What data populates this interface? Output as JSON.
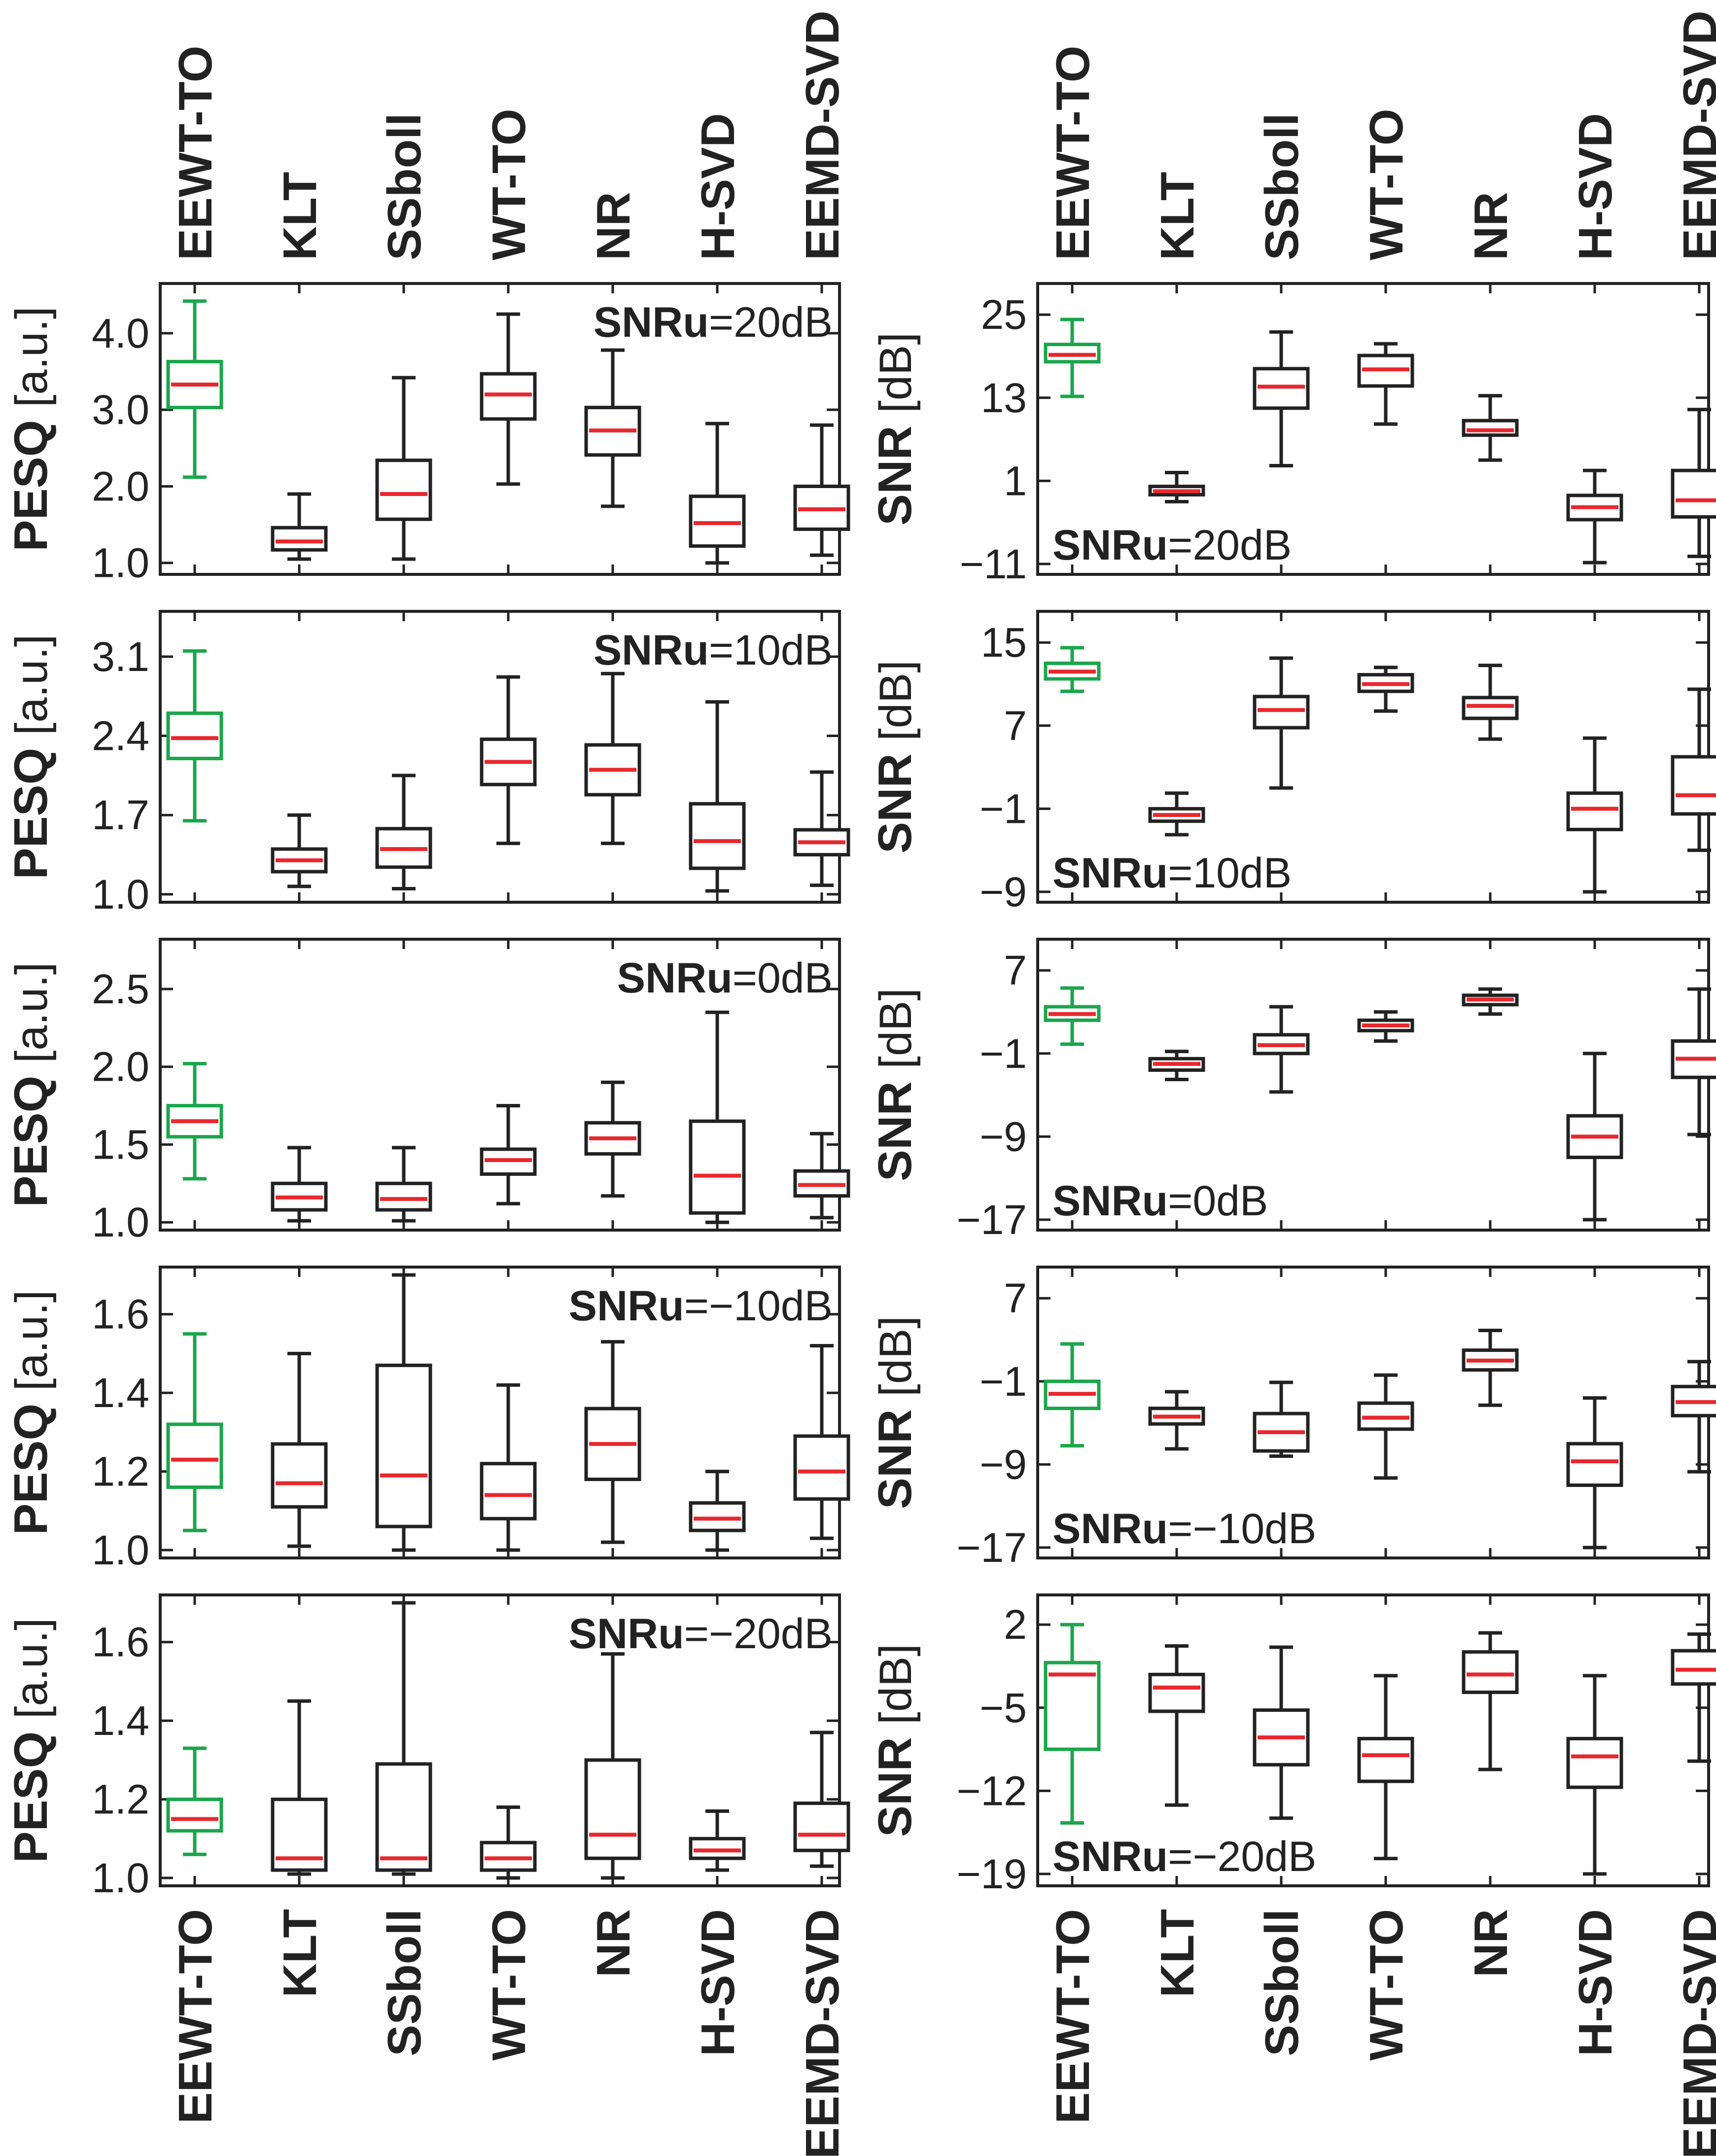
{
  "figure": {
    "methods": [
      "EEWT-TO",
      "KLT",
      "SSboll",
      "WT-TO",
      "NR",
      "H-SVD",
      "EEMD-SVD"
    ],
    "highlight_method": "EEWT-TO",
    "colors": {
      "highlight": "#1aa64b",
      "box": "#222222",
      "median": "#e8282e",
      "text": "#222222"
    },
    "column_titles": {
      "pesq": {
        "bold": "PESQ",
        "unit": " [a.u.]"
      },
      "snr": {
        "bold": "SNR",
        "unit": " [dB]"
      }
    }
  },
  "chart_data": [
    {
      "type": "box",
      "metric": "PESQ",
      "ylabel": "PESQ [a.u.]",
      "annotation": {
        "bold": "SNRu",
        "value": "=20dB",
        "position": "top-right"
      },
      "ylim": [
        0.85,
        4.65
      ],
      "yticks": [
        1.0,
        2.0,
        3.0,
        4.0
      ],
      "tick_labels": [
        "1.0",
        "2.0",
        "3.0",
        "4.0"
      ],
      "boxes": [
        {
          "method": "EEWT-TO",
          "min": 2.12,
          "q1": 3.03,
          "median": 3.33,
          "q3": 3.63,
          "max": 4.42
        },
        {
          "method": "KLT",
          "min": 1.05,
          "q1": 1.17,
          "median": 1.28,
          "q3": 1.46,
          "max": 1.9
        },
        {
          "method": "SSboll",
          "min": 1.05,
          "q1": 1.57,
          "median": 1.9,
          "q3": 2.34,
          "max": 3.42
        },
        {
          "method": "WT-TO",
          "min": 2.03,
          "q1": 2.88,
          "median": 3.2,
          "q3": 3.47,
          "max": 4.25
        },
        {
          "method": "NR",
          "min": 1.74,
          "q1": 2.41,
          "median": 2.73,
          "q3": 3.03,
          "max": 3.78
        },
        {
          "method": "H-SVD",
          "min": 1.0,
          "q1": 1.22,
          "median": 1.52,
          "q3": 1.87,
          "max": 2.82
        },
        {
          "method": "EEMD-SVD",
          "min": 1.1,
          "q1": 1.44,
          "median": 1.7,
          "q3": 2.0,
          "max": 2.8
        }
      ]
    },
    {
      "type": "box",
      "metric": "SNR",
      "ylabel": "SNR [dB]",
      "annotation": {
        "bold": "SNRu",
        "value": "=20dB",
        "position": "bottom-left"
      },
      "ylim": [
        -12.5,
        29.5
      ],
      "yticks": [
        -11,
        1,
        13,
        25
      ],
      "tick_labels": [
        "−11",
        "1",
        "13",
        "25"
      ],
      "boxes": [
        {
          "method": "EEWT-TO",
          "min": 13.2,
          "q1": 18.2,
          "median": 19.2,
          "q3": 20.7,
          "max": 24.3
        },
        {
          "method": "KLT",
          "min": -2.0,
          "q1": -1.0,
          "median": -0.5,
          "q3": 0.2,
          "max": 2.2
        },
        {
          "method": "SSboll",
          "min": 3.2,
          "q1": 11.5,
          "median": 14.6,
          "q3": 17.2,
          "max": 22.5
        },
        {
          "method": "WT-TO",
          "min": 9.2,
          "q1": 14.7,
          "median": 17.1,
          "q3": 19.1,
          "max": 20.8
        },
        {
          "method": "NR",
          "min": 4.0,
          "q1": 7.6,
          "median": 8.3,
          "q3": 9.7,
          "max": 13.3
        },
        {
          "method": "H-SVD",
          "min": -10.8,
          "q1": -4.6,
          "median": -2.8,
          "q3": -1.1,
          "max": 2.5
        },
        {
          "method": "EEMD-SVD",
          "min": -9.9,
          "q1": -4.2,
          "median": -1.8,
          "q3": 2.5,
          "max": 11.3
        }
      ]
    },
    {
      "type": "box",
      "metric": "PESQ",
      "ylabel": "PESQ [a.u.]",
      "annotation": {
        "bold": "SNRu",
        "value": "=10dB",
        "position": "top-right"
      },
      "ylim": [
        0.93,
        3.5
      ],
      "yticks": [
        1.0,
        1.7,
        2.4,
        3.1
      ],
      "tick_labels": [
        "1.0",
        "1.7",
        "2.4",
        "3.1"
      ],
      "boxes": [
        {
          "method": "EEWT-TO",
          "min": 1.65,
          "q1": 2.2,
          "median": 2.38,
          "q3": 2.6,
          "max": 3.15
        },
        {
          "method": "KLT",
          "min": 1.07,
          "q1": 1.2,
          "median": 1.3,
          "q3": 1.4,
          "max": 1.7
        },
        {
          "method": "SSboll",
          "min": 1.05,
          "q1": 1.24,
          "median": 1.4,
          "q3": 1.58,
          "max": 2.05
        },
        {
          "method": "WT-TO",
          "min": 1.45,
          "q1": 1.97,
          "median": 2.17,
          "q3": 2.37,
          "max": 2.92
        },
        {
          "method": "NR",
          "min": 1.45,
          "q1": 1.88,
          "median": 2.1,
          "q3": 2.32,
          "max": 2.95
        },
        {
          "method": "H-SVD",
          "min": 1.03,
          "q1": 1.23,
          "median": 1.47,
          "q3": 1.8,
          "max": 2.7
        },
        {
          "method": "EEMD-SVD",
          "min": 1.08,
          "q1": 1.35,
          "median": 1.46,
          "q3": 1.57,
          "max": 2.08
        }
      ]
    },
    {
      "type": "box",
      "metric": "SNR",
      "ylabel": "SNR [dB]",
      "annotation": {
        "bold": "SNRu",
        "value": "=10dB",
        "position": "bottom-left"
      },
      "ylim": [
        -10.0,
        18.0
      ],
      "yticks": [
        -9,
        -1,
        7,
        15
      ],
      "tick_labels": [
        "−9",
        "−1",
        "7",
        "15"
      ],
      "boxes": [
        {
          "method": "EEWT-TO",
          "min": 10.3,
          "q1": 11.5,
          "median": 12.2,
          "q3": 13.0,
          "max": 14.5
        },
        {
          "method": "KLT",
          "min": -3.5,
          "q1": -2.2,
          "median": -1.6,
          "q3": -1.0,
          "max": 0.5
        },
        {
          "method": "SSboll",
          "min": 1.0,
          "q1": 6.8,
          "median": 8.5,
          "q3": 9.8,
          "max": 13.5
        },
        {
          "method": "WT-TO",
          "min": 8.4,
          "q1": 10.3,
          "median": 11.0,
          "q3": 11.9,
          "max": 12.6
        },
        {
          "method": "NR",
          "min": 5.7,
          "q1": 7.7,
          "median": 8.9,
          "q3": 9.7,
          "max": 12.8
        },
        {
          "method": "H-SVD",
          "min": -9.0,
          "q1": -3.0,
          "median": -1.0,
          "q3": 0.5,
          "max": 5.8
        },
        {
          "method": "EEMD-SVD",
          "min": -5.0,
          "q1": -1.5,
          "median": 0.3,
          "q3": 4.0,
          "max": 10.5
        }
      ]
    },
    {
      "type": "box",
      "metric": "PESQ",
      "ylabel": "PESQ [a.u.]",
      "annotation": {
        "bold": "SNRu",
        "value": "=0dB",
        "position": "top-right"
      },
      "ylim": [
        0.95,
        2.82
      ],
      "yticks": [
        1.0,
        1.5,
        2.0,
        2.5
      ],
      "tick_labels": [
        "1.0",
        "1.5",
        "2.0",
        "2.5"
      ],
      "boxes": [
        {
          "method": "EEWT-TO",
          "min": 1.28,
          "q1": 1.55,
          "median": 1.65,
          "q3": 1.75,
          "max": 2.02
        },
        {
          "method": "KLT",
          "min": 1.01,
          "q1": 1.08,
          "median": 1.16,
          "q3": 1.25,
          "max": 1.48
        },
        {
          "method": "SSboll",
          "min": 1.01,
          "q1": 1.08,
          "median": 1.15,
          "q3": 1.25,
          "max": 1.48
        },
        {
          "method": "WT-TO",
          "min": 1.12,
          "q1": 1.31,
          "median": 1.4,
          "q3": 1.47,
          "max": 1.75
        },
        {
          "method": "NR",
          "min": 1.17,
          "q1": 1.44,
          "median": 1.54,
          "q3": 1.64,
          "max": 1.9
        },
        {
          "method": "H-SVD",
          "min": 1.0,
          "q1": 1.06,
          "median": 1.3,
          "q3": 1.65,
          "max": 2.35
        },
        {
          "method": "EEMD-SVD",
          "min": 1.03,
          "q1": 1.17,
          "median": 1.24,
          "q3": 1.33,
          "max": 1.57
        }
      ]
    },
    {
      "type": "box",
      "metric": "SNR",
      "ylabel": "SNR [dB]",
      "annotation": {
        "bold": "SNRu",
        "value": "=0dB",
        "position": "bottom-left"
      },
      "ylim": [
        -18.0,
        10.0
      ],
      "yticks": [
        -17,
        -9,
        -1,
        7
      ],
      "tick_labels": [
        "−17",
        "−9",
        "−1",
        "7"
      ],
      "boxes": [
        {
          "method": "EEWT-TO",
          "min": -0.1,
          "q1": 2.2,
          "median": 2.8,
          "q3": 3.5,
          "max": 5.3
        },
        {
          "method": "KLT",
          "min": -3.5,
          "q1": -2.6,
          "median": -2.0,
          "q3": -1.5,
          "max": -0.8
        },
        {
          "method": "SSboll",
          "min": -4.7,
          "q1": -1.0,
          "median": -0.2,
          "q3": 0.8,
          "max": 3.5
        },
        {
          "method": "WT-TO",
          "min": 0.2,
          "q1": 1.2,
          "median": 1.7,
          "q3": 2.2,
          "max": 3.0
        },
        {
          "method": "NR",
          "min": 2.8,
          "q1": 3.7,
          "median": 4.2,
          "q3": 4.6,
          "max": 5.2
        },
        {
          "method": "H-SVD",
          "min": -17.0,
          "q1": -11.0,
          "median": -9.0,
          "q3": -7.0,
          "max": -1.0
        },
        {
          "method": "EEMD-SVD",
          "min": -8.8,
          "q1": -3.3,
          "median": -1.5,
          "q3": 0.2,
          "max": 5.2
        }
      ]
    },
    {
      "type": "box",
      "metric": "PESQ",
      "ylabel": "PESQ [a.u.]",
      "annotation": {
        "bold": "SNRu",
        "value": "=−10dB",
        "position": "top-right"
      },
      "ylim": [
        0.98,
        1.72
      ],
      "yticks": [
        1.0,
        1.2,
        1.4,
        1.6
      ],
      "tick_labels": [
        "1.0",
        "1.2",
        "1.4",
        "1.6"
      ],
      "boxes": [
        {
          "method": "EEWT-TO",
          "min": 1.05,
          "q1": 1.16,
          "median": 1.23,
          "q3": 1.32,
          "max": 1.55
        },
        {
          "method": "KLT",
          "min": 1.01,
          "q1": 1.11,
          "median": 1.17,
          "q3": 1.27,
          "max": 1.5
        },
        {
          "method": "SSboll",
          "min": 1.0,
          "q1": 1.06,
          "median": 1.19,
          "q3": 1.47,
          "max": 1.7
        },
        {
          "method": "WT-TO",
          "min": 1.0,
          "q1": 1.08,
          "median": 1.14,
          "q3": 1.22,
          "max": 1.42
        },
        {
          "method": "NR",
          "min": 1.02,
          "q1": 1.18,
          "median": 1.27,
          "q3": 1.36,
          "max": 1.53
        },
        {
          "method": "H-SVD",
          "min": 1.0,
          "q1": 1.05,
          "median": 1.08,
          "q3": 1.12,
          "max": 1.2
        },
        {
          "method": "EEMD-SVD",
          "min": 1.03,
          "q1": 1.13,
          "median": 1.2,
          "q3": 1.29,
          "max": 1.52
        }
      ]
    },
    {
      "type": "box",
      "metric": "SNR",
      "ylabel": "SNR [dB]",
      "annotation": {
        "bold": "SNRu",
        "value": "=−10dB",
        "position": "bottom-left"
      },
      "ylim": [
        -18.0,
        10.0
      ],
      "yticks": [
        -17,
        -9,
        -1,
        7
      ],
      "tick_labels": [
        "−17",
        "−9",
        "−1",
        "7"
      ],
      "boxes": [
        {
          "method": "EEWT-TO",
          "min": -7.2,
          "q1": -3.6,
          "median": -2.2,
          "q3": -1.0,
          "max": 2.6
        },
        {
          "method": "KLT",
          "min": -7.5,
          "q1": -5.1,
          "median": -4.4,
          "q3": -3.6,
          "max": -2.0
        },
        {
          "method": "SSboll",
          "min": -8.2,
          "q1": -7.7,
          "median": -5.9,
          "q3": -4.1,
          "max": -1.1
        },
        {
          "method": "WT-TO",
          "min": -10.3,
          "q1": -5.6,
          "median": -4.5,
          "q3": -3.1,
          "max": -0.4
        },
        {
          "method": "NR",
          "min": -3.3,
          "q1": 0.1,
          "median": 1.0,
          "q3": 2.0,
          "max": 3.9
        },
        {
          "method": "H-SVD",
          "min": -17.0,
          "q1": -11.0,
          "median": -8.7,
          "q3": -7.0,
          "max": -2.6
        },
        {
          "method": "EEMD-SVD",
          "min": -9.7,
          "q1": -4.3,
          "median": -3.0,
          "q3": -1.5,
          "max": 0.9
        }
      ]
    },
    {
      "type": "box",
      "metric": "PESQ",
      "ylabel": "PESQ [a.u.]",
      "annotation": {
        "bold": "SNRu",
        "value": "=−20dB",
        "position": "top-right"
      },
      "ylim": [
        0.98,
        1.72
      ],
      "yticks": [
        1.0,
        1.2,
        1.4,
        1.6
      ],
      "tick_labels": [
        "1.0",
        "1.2",
        "1.4",
        "1.6"
      ],
      "boxes": [
        {
          "method": "EEWT-TO",
          "min": 1.06,
          "q1": 1.12,
          "median": 1.15,
          "q3": 1.2,
          "max": 1.33
        },
        {
          "method": "KLT",
          "min": 1.01,
          "q1": 1.02,
          "median": 1.05,
          "q3": 1.2,
          "max": 1.45
        },
        {
          "method": "SSboll",
          "min": 1.01,
          "q1": 1.02,
          "median": 1.05,
          "q3": 1.29,
          "max": 1.7
        },
        {
          "method": "WT-TO",
          "min": 1.0,
          "q1": 1.02,
          "median": 1.05,
          "q3": 1.09,
          "max": 1.18
        },
        {
          "method": "NR",
          "min": 1.0,
          "q1": 1.05,
          "median": 1.11,
          "q3": 1.3,
          "max": 1.57
        },
        {
          "method": "H-SVD",
          "min": 1.02,
          "q1": 1.05,
          "median": 1.07,
          "q3": 1.1,
          "max": 1.17
        },
        {
          "method": "EEMD-SVD",
          "min": 1.03,
          "q1": 1.07,
          "median": 1.11,
          "q3": 1.19,
          "max": 1.37
        }
      ]
    },
    {
      "type": "box",
      "metric": "SNR",
      "ylabel": "SNR [dB]",
      "annotation": {
        "bold": "SNRu",
        "value": "=−20dB",
        "position": "bottom-left"
      },
      "ylim": [
        -20.0,
        4.5
      ],
      "yticks": [
        -19,
        -12,
        -5,
        2
      ],
      "tick_labels": [
        "−19",
        "−12",
        "−5",
        "2"
      ],
      "boxes": [
        {
          "method": "EEWT-TO",
          "min": -14.7,
          "q1": -8.5,
          "median": -2.2,
          "q3": -1.2,
          "max": 2.0
        },
        {
          "method": "KLT",
          "min": -13.2,
          "q1": -5.3,
          "median": -3.3,
          "q3": -2.2,
          "max": 0.2
        },
        {
          "method": "SSboll",
          "min": -14.3,
          "q1": -9.8,
          "median": -7.5,
          "q3": -5.2,
          "max": 0.1
        },
        {
          "method": "WT-TO",
          "min": -17.7,
          "q1": -11.2,
          "median": -9.0,
          "q3": -7.6,
          "max": -2.3
        },
        {
          "method": "NR",
          "min": -10.2,
          "q1": -3.7,
          "median": -2.2,
          "q3": -0.3,
          "max": 1.3
        },
        {
          "method": "H-SVD",
          "min": -19.0,
          "q1": -11.7,
          "median": -9.1,
          "q3": -7.6,
          "max": -2.3
        },
        {
          "method": "EEMD-SVD",
          "min": -9.5,
          "q1": -3.0,
          "median": -1.8,
          "q3": -0.2,
          "max": 1.2
        }
      ]
    }
  ]
}
